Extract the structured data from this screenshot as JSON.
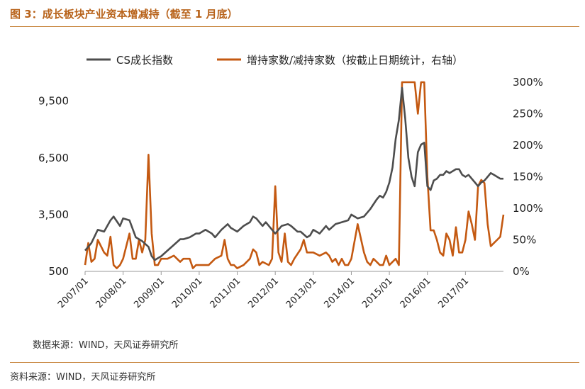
{
  "page": {
    "title": "图 3：成长板块产业资本增减持（截至 1 月底）",
    "inner_source": "数据来源：WIND，天风证券研究所",
    "footer_source": "资料来源：WIND，天风证券研究所"
  },
  "colors": {
    "accent": "#c7853c",
    "title": "#b8631b",
    "series_gray": "#4d4d4d",
    "series_orange": "#c45911"
  },
  "chart_data": {
    "type": "line",
    "x_tick_labels": [
      "2007/01",
      "2008/01",
      "2009/01",
      "2010/01",
      "2011/01",
      "2012/01",
      "2013/01",
      "2014/01",
      "2015/01",
      "2016/01",
      "2017/01"
    ],
    "x_start": "2007/01",
    "x_end": "2018/01",
    "y_left": {
      "ticks": [
        500,
        3500,
        6500,
        9500
      ],
      "tick_labels": [
        "500",
        "3,500",
        "6,500",
        "9,500"
      ],
      "lim": [
        500,
        10500
      ]
    },
    "y_right": {
      "ticks": [
        0,
        0.5,
        1,
        1.5,
        2,
        2.5,
        3
      ],
      "tick_labels": [
        "0%",
        "50%",
        "100%",
        "150%",
        "200%",
        "250%",
        "300%"
      ],
      "lim": [
        0,
        3
      ]
    },
    "grid": false,
    "legend_position": "top",
    "series": [
      {
        "name": "CS成长指数",
        "axis": "left",
        "color": "#4d4d4d",
        "points": [
          [
            "2007-01",
            1600
          ],
          [
            "2007-03",
            2000
          ],
          [
            "2007-05",
            2700
          ],
          [
            "2007-07",
            2600
          ],
          [
            "2007-09",
            3200
          ],
          [
            "2007-10",
            3400
          ],
          [
            "2007-12",
            2900
          ],
          [
            "2008-01",
            3300
          ],
          [
            "2008-03",
            3200
          ],
          [
            "2008-05",
            2300
          ],
          [
            "2008-07",
            2100
          ],
          [
            "2008-09",
            1800
          ],
          [
            "2008-10",
            1300
          ],
          [
            "2008-11",
            1100
          ],
          [
            "2008-12",
            1200
          ],
          [
            "2009-01",
            1300
          ],
          [
            "2009-03",
            1600
          ],
          [
            "2009-05",
            1900
          ],
          [
            "2009-07",
            2200
          ],
          [
            "2009-08",
            2200
          ],
          [
            "2009-10",
            2300
          ],
          [
            "2009-12",
            2500
          ],
          [
            "2010-01",
            2500
          ],
          [
            "2010-03",
            2700
          ],
          [
            "2010-05",
            2500
          ],
          [
            "2010-06",
            2300
          ],
          [
            "2010-08",
            2700
          ],
          [
            "2010-10",
            3000
          ],
          [
            "2010-11",
            2800
          ],
          [
            "2010-12",
            2700
          ],
          [
            "2011-01",
            2600
          ],
          [
            "2011-03",
            2900
          ],
          [
            "2011-05",
            3100
          ],
          [
            "2011-06",
            3400
          ],
          [
            "2011-07",
            3300
          ],
          [
            "2011-09",
            2900
          ],
          [
            "2011-10",
            3100
          ],
          [
            "2011-12",
            2700
          ],
          [
            "2012-01",
            2500
          ],
          [
            "2012-03",
            2900
          ],
          [
            "2012-05",
            3000
          ],
          [
            "2012-06",
            2900
          ],
          [
            "2012-08",
            2600
          ],
          [
            "2012-09",
            2600
          ],
          [
            "2012-11",
            2300
          ],
          [
            "2012-12",
            2400
          ],
          [
            "2013-01",
            2700
          ],
          [
            "2013-03",
            2500
          ],
          [
            "2013-05",
            2900
          ],
          [
            "2013-06",
            2700
          ],
          [
            "2013-08",
            3000
          ],
          [
            "2013-10",
            3100
          ],
          [
            "2013-12",
            3200
          ],
          [
            "2014-01",
            3500
          ],
          [
            "2014-03",
            3300
          ],
          [
            "2014-05",
            3400
          ],
          [
            "2014-07",
            3800
          ],
          [
            "2014-09",
            4300
          ],
          [
            "2014-10",
            4500
          ],
          [
            "2014-11",
            4400
          ],
          [
            "2014-12",
            4700
          ],
          [
            "2015-01",
            5200
          ],
          [
            "2015-02",
            6000
          ],
          [
            "2015-03",
            7500
          ],
          [
            "2015-04",
            8500
          ],
          [
            "2015-05",
            10200
          ],
          [
            "2015-06",
            8600
          ],
          [
            "2015-07",
            6500
          ],
          [
            "2015-08",
            5500
          ],
          [
            "2015-09",
            5000
          ],
          [
            "2015-10",
            6800
          ],
          [
            "2015-11",
            7200
          ],
          [
            "2015-12",
            7300
          ],
          [
            "2016-01",
            5000
          ],
          [
            "2016-02",
            4800
          ],
          [
            "2016-03",
            5300
          ],
          [
            "2016-04",
            5400
          ],
          [
            "2016-05",
            5600
          ],
          [
            "2016-06",
            5600
          ],
          [
            "2016-07",
            5800
          ],
          [
            "2016-08",
            5700
          ],
          [
            "2016-09",
            5800
          ],
          [
            "2016-10",
            5900
          ],
          [
            "2016-11",
            5900
          ],
          [
            "2016-12",
            5600
          ],
          [
            "2017-01",
            5500
          ],
          [
            "2017-02",
            5600
          ],
          [
            "2017-03",
            5400
          ],
          [
            "2017-04",
            5200
          ],
          [
            "2017-05",
            5000
          ],
          [
            "2017-06",
            5200
          ],
          [
            "2017-07",
            5300
          ],
          [
            "2017-08",
            5500
          ],
          [
            "2017-09",
            5700
          ],
          [
            "2017-10",
            5600
          ],
          [
            "2017-11",
            5500
          ],
          [
            "2017-12",
            5400
          ],
          [
            "2018-01",
            5400
          ]
        ]
      },
      {
        "name": "增持家数/减持家数（按截止日期统计，右轴）",
        "axis": "right",
        "color": "#c45911",
        "points": [
          [
            "2007-01",
            0.1
          ],
          [
            "2007-02",
            0.45
          ],
          [
            "2007-03",
            0.15
          ],
          [
            "2007-04",
            0.2
          ],
          [
            "2007-05",
            0.5
          ],
          [
            "2007-07",
            0.3
          ],
          [
            "2007-08",
            0.25
          ],
          [
            "2007-09",
            0.55
          ],
          [
            "2007-10",
            0.1
          ],
          [
            "2007-11",
            0.05
          ],
          [
            "2007-12",
            0.1
          ],
          [
            "2008-01",
            0.2
          ],
          [
            "2008-02",
            0.4
          ],
          [
            "2008-03",
            0.6
          ],
          [
            "2008-04",
            0.2
          ],
          [
            "2008-05",
            0.2
          ],
          [
            "2008-06",
            0.5
          ],
          [
            "2008-07",
            0.3
          ],
          [
            "2008-08",
            0.5
          ],
          [
            "2008-09",
            1.85
          ],
          [
            "2008-10",
            0.6
          ],
          [
            "2008-11",
            0.1
          ],
          [
            "2008-12",
            0.1
          ],
          [
            "2009-01",
            0.2
          ],
          [
            "2009-03",
            0.2
          ],
          [
            "2009-05",
            0.25
          ],
          [
            "2009-07",
            0.15
          ],
          [
            "2009-08",
            0.2
          ],
          [
            "2009-10",
            0.2
          ],
          [
            "2009-11",
            0.05
          ],
          [
            "2009-12",
            0.1
          ],
          [
            "2010-01",
            0.1
          ],
          [
            "2010-03",
            0.1
          ],
          [
            "2010-04",
            0.1
          ],
          [
            "2010-06",
            0.2
          ],
          [
            "2010-08",
            0.25
          ],
          [
            "2010-09",
            0.5
          ],
          [
            "2010-10",
            0.2
          ],
          [
            "2010-11",
            0.1
          ],
          [
            "2010-12",
            0.1
          ],
          [
            "2011-01",
            0.05
          ],
          [
            "2011-03",
            0.1
          ],
          [
            "2011-05",
            0.2
          ],
          [
            "2011-06",
            0.35
          ],
          [
            "2011-07",
            0.3
          ],
          [
            "2011-08",
            0.1
          ],
          [
            "2011-09",
            0.15
          ],
          [
            "2011-11",
            0.1
          ],
          [
            "2011-12",
            0.2
          ],
          [
            "2012-01",
            1.35
          ],
          [
            "2012-02",
            0.3
          ],
          [
            "2012-03",
            0.15
          ],
          [
            "2012-04",
            0.6
          ],
          [
            "2012-05",
            0.15
          ],
          [
            "2012-06",
            0.1
          ],
          [
            "2012-07",
            0.2
          ],
          [
            "2012-09",
            0.35
          ],
          [
            "2012-10",
            0.5
          ],
          [
            "2012-11",
            0.3
          ],
          [
            "2012-12",
            0.3
          ],
          [
            "2013-01",
            0.3
          ],
          [
            "2013-03",
            0.25
          ],
          [
            "2013-05",
            0.3
          ],
          [
            "2013-06",
            0.25
          ],
          [
            "2013-07",
            0.15
          ],
          [
            "2013-08",
            0.2
          ],
          [
            "2013-09",
            0.1
          ],
          [
            "2013-10",
            0.2
          ],
          [
            "2013-11",
            0.1
          ],
          [
            "2013-12",
            0.1
          ],
          [
            "2014-01",
            0.2
          ],
          [
            "2014-03",
            0.75
          ],
          [
            "2014-05",
            0.3
          ],
          [
            "2014-06",
            0.15
          ],
          [
            "2014-07",
            0.1
          ],
          [
            "2014-08",
            0.2
          ],
          [
            "2014-09",
            0.15
          ],
          [
            "2014-10",
            0.1
          ],
          [
            "2014-11",
            0.1
          ],
          [
            "2014-12",
            0.25
          ],
          [
            "2015-01",
            0.1
          ],
          [
            "2015-03",
            0.2
          ],
          [
            "2015-04",
            0.1
          ],
          [
            "2015-05",
            3.0
          ],
          [
            "2015-06",
            3.0
          ],
          [
            "2015-07",
            3.0
          ],
          [
            "2015-08",
            3.0
          ],
          [
            "2015-09",
            3.0
          ],
          [
            "2015-10",
            2.5
          ],
          [
            "2015-11",
            3.0
          ],
          [
            "2015-12",
            3.0
          ],
          [
            "2016-01",
            1.5
          ],
          [
            "2016-02",
            0.65
          ],
          [
            "2016-03",
            0.65
          ],
          [
            "2016-04",
            0.5
          ],
          [
            "2016-05",
            0.3
          ],
          [
            "2016-06",
            0.25
          ],
          [
            "2016-07",
            0.6
          ],
          [
            "2016-08",
            0.5
          ],
          [
            "2016-09",
            0.25
          ],
          [
            "2016-10",
            0.7
          ],
          [
            "2016-11",
            0.3
          ],
          [
            "2016-12",
            0.3
          ],
          [
            "2017-01",
            0.5
          ],
          [
            "2017-02",
            0.95
          ],
          [
            "2017-03",
            0.75
          ],
          [
            "2017-04",
            0.5
          ],
          [
            "2017-05",
            1.35
          ],
          [
            "2017-06",
            1.45
          ],
          [
            "2017-07",
            1.4
          ],
          [
            "2017-08",
            0.75
          ],
          [
            "2017-09",
            0.4
          ],
          [
            "2017-10",
            0.45
          ],
          [
            "2017-11",
            0.5
          ],
          [
            "2017-12",
            0.55
          ],
          [
            "2018-01",
            0.9
          ]
        ]
      }
    ]
  }
}
